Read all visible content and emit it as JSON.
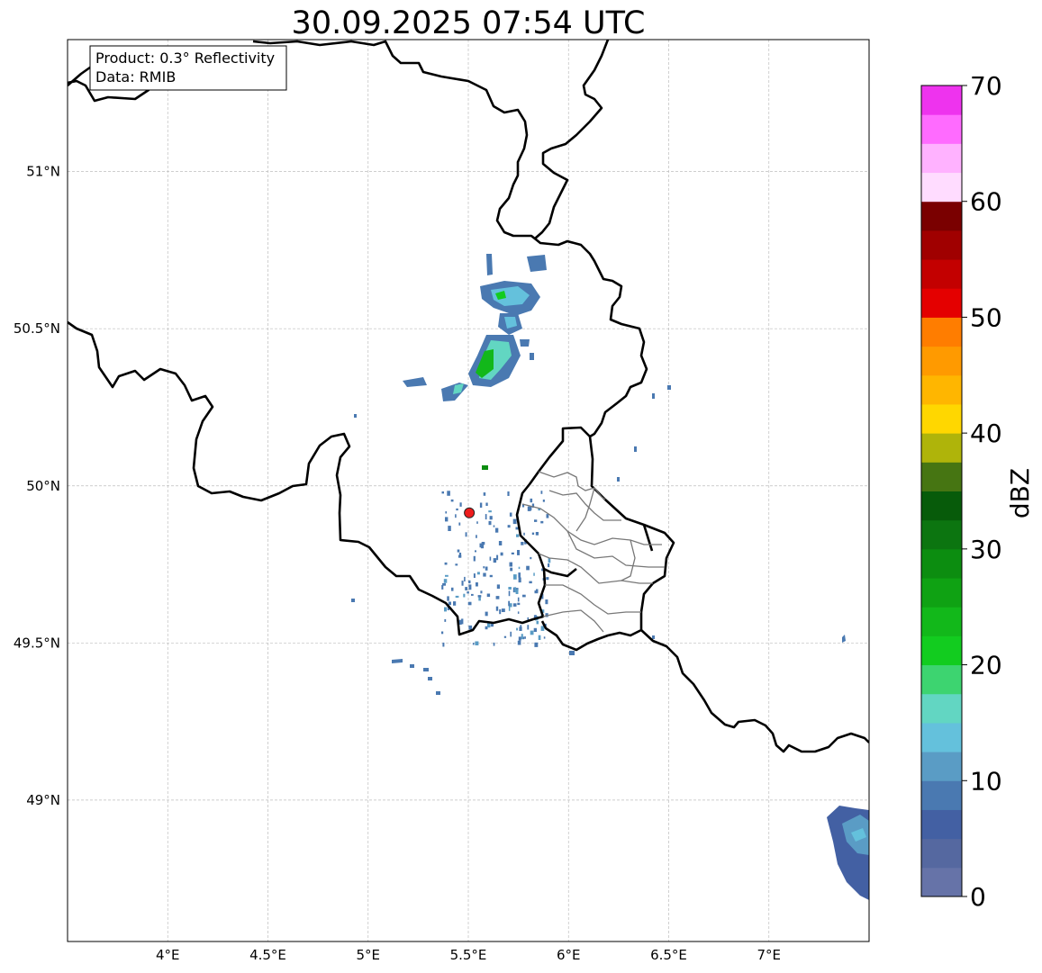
{
  "title": "30.09.2025 07:54 UTC",
  "info": {
    "product": "Product: 0.3° Reflectivity",
    "data": "Data: RMIB"
  },
  "map": {
    "lon_range": [
      3.5,
      7.5
    ],
    "lat_range": [
      48.55,
      51.42
    ],
    "lon_ticks": [
      {
        "value": 4.0,
        "label": "4°E"
      },
      {
        "value": 4.5,
        "label": "4.5°E"
      },
      {
        "value": 5.0,
        "label": "5°E"
      },
      {
        "value": 5.5,
        "label": "5.5°E"
      },
      {
        "value": 6.0,
        "label": "6°E"
      },
      {
        "value": 6.5,
        "label": "6.5°E"
      },
      {
        "value": 7.0,
        "label": "7°E"
      }
    ],
    "lat_ticks": [
      {
        "value": 51.0,
        "label": "51°N"
      },
      {
        "value": 50.5,
        "label": "50.5°N"
      },
      {
        "value": 50.0,
        "label": "50°N"
      },
      {
        "value": 49.5,
        "label": "49.5°N"
      },
      {
        "value": 49.0,
        "label": "49°N"
      }
    ],
    "radar_site": {
      "lon": 5.505,
      "lat": 49.914,
      "color": "#ee1c1c"
    },
    "gridlines": true
  },
  "colorbar": {
    "label": "dBZ",
    "min": 0,
    "max": 70,
    "step": 2.5,
    "ticks": [
      {
        "value": 0,
        "label": "0"
      },
      {
        "value": 10,
        "label": "10"
      },
      {
        "value": 20,
        "label": "20"
      },
      {
        "value": 30,
        "label": "30"
      },
      {
        "value": 40,
        "label": "40"
      },
      {
        "value": 50,
        "label": "50"
      },
      {
        "value": 60,
        "label": "60"
      },
      {
        "value": 70,
        "label": "70"
      }
    ],
    "colors": [
      "#6673a8",
      "#5568a0",
      "#4360a3",
      "#4a79b1",
      "#5a9cc5",
      "#64c1dc",
      "#62d6c2",
      "#3dd470",
      "#12cc1f",
      "#12b81a",
      "#0fa213",
      "#0c8d10",
      "#0c7510",
      "#075b0a",
      "#467512",
      "#afb40a",
      "#ffd700",
      "#ffb600",
      "#ff9a00",
      "#ff7d00",
      "#e40000",
      "#c30000",
      "#a00000",
      "#7a0000",
      "#ffdcff",
      "#ffb2ff",
      "#ff6bff",
      "#ee33ee"
    ]
  }
}
